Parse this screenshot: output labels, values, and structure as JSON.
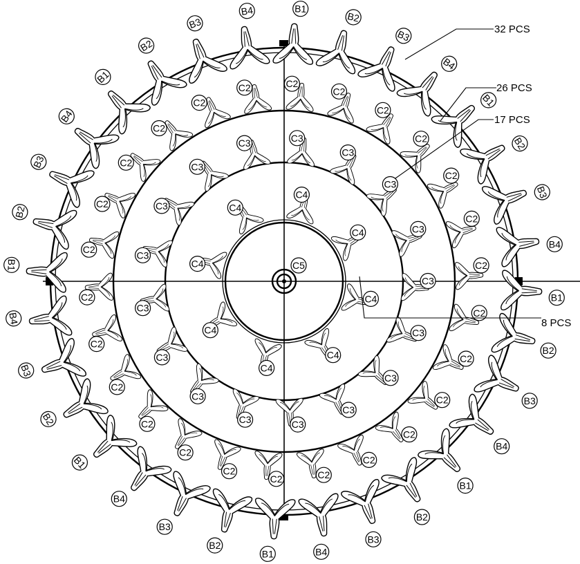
{
  "diagram": {
    "callouts": [
      {
        "id": "ring1",
        "text": "32 PCS"
      },
      {
        "id": "ring2",
        "text": "26 PCS"
      },
      {
        "id": "ring3",
        "text": "17 PCS"
      },
      {
        "id": "ring4",
        "text": "8 PCS"
      }
    ],
    "rings": [
      {
        "id": "ring1",
        "count": 32,
        "labels": [
          "B1",
          "B2",
          "B3",
          "B4"
        ],
        "label_sequence_start": 0
      },
      {
        "id": "ring2",
        "count": 26,
        "labels": [
          "C2"
        ]
      },
      {
        "id": "ring3",
        "count": 17,
        "labels": [
          "C3"
        ]
      },
      {
        "id": "ring4",
        "count": 8,
        "labels": [
          "C4"
        ]
      }
    ],
    "center_label": "C5"
  }
}
